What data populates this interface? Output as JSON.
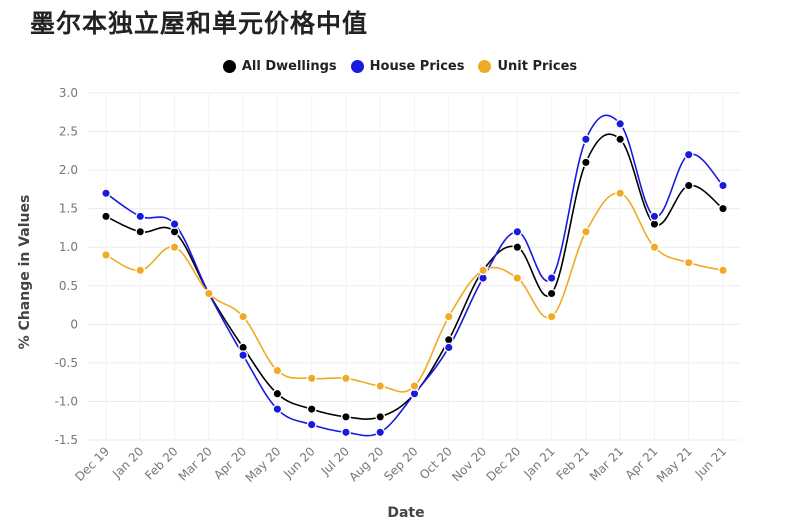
{
  "title": "墨尔本独立屋和单元价格中值",
  "chart_data": {
    "type": "line",
    "title": "墨尔本独立屋和单元价格中值",
    "xlabel": "Date",
    "ylabel": "% Change in Values",
    "ylim": [
      -1.5,
      3.0
    ],
    "yticks": [
      {
        "value": 3.0,
        "label": "3.0"
      },
      {
        "value": 2.5,
        "label": "2.5"
      },
      {
        "value": 2.0,
        "label": "2.0"
      },
      {
        "value": 1.5,
        "label": "1.5"
      },
      {
        "value": 1.0,
        "label": "1.0"
      },
      {
        "value": 0.5,
        "label": "0.5"
      },
      {
        "value": 0,
        "label": "0"
      },
      {
        "value": -0.5,
        "label": "-0.5"
      },
      {
        "value": -1.0,
        "label": "-1.0"
      },
      {
        "value": -1.5,
        "label": "-1.5"
      }
    ],
    "grid": true,
    "legend_position": "top-center",
    "categories": [
      "Dec 19",
      "Jan 20",
      "Feb 20",
      "Mar 20",
      "Apr 20",
      "May 20",
      "Jun 20",
      "Jul 20",
      "Aug 20",
      "Sep 20",
      "Oct 20",
      "Nov 20",
      "Dec 20",
      "Jan 21",
      "Feb 21",
      "Mar 21",
      "Apr 21",
      "May 21",
      "Jun 21"
    ],
    "series": [
      {
        "name": "All Dwellings",
        "color": "#000000",
        "values": [
          1.4,
          1.2,
          1.2,
          0.4,
          -0.3,
          -0.9,
          -1.1,
          -1.2,
          -1.2,
          -0.9,
          -0.2,
          0.7,
          1.0,
          0.4,
          2.1,
          2.4,
          1.3,
          1.8,
          1.5
        ]
      },
      {
        "name": "House Prices",
        "color": "#1a1adf",
        "values": [
          1.7,
          1.4,
          1.3,
          0.4,
          -0.4,
          -1.1,
          -1.3,
          -1.4,
          -1.4,
          -0.9,
          -0.3,
          0.6,
          1.2,
          0.6,
          2.4,
          2.6,
          1.4,
          2.2,
          1.8
        ]
      },
      {
        "name": "Unit Prices",
        "color": "#f0aa24",
        "values": [
          0.9,
          0.7,
          1.0,
          0.4,
          0.1,
          -0.6,
          -0.7,
          -0.7,
          -0.8,
          -0.8,
          0.1,
          0.7,
          0.6,
          0.1,
          1.2,
          1.7,
          1.0,
          0.8,
          0.7
        ]
      }
    ]
  }
}
